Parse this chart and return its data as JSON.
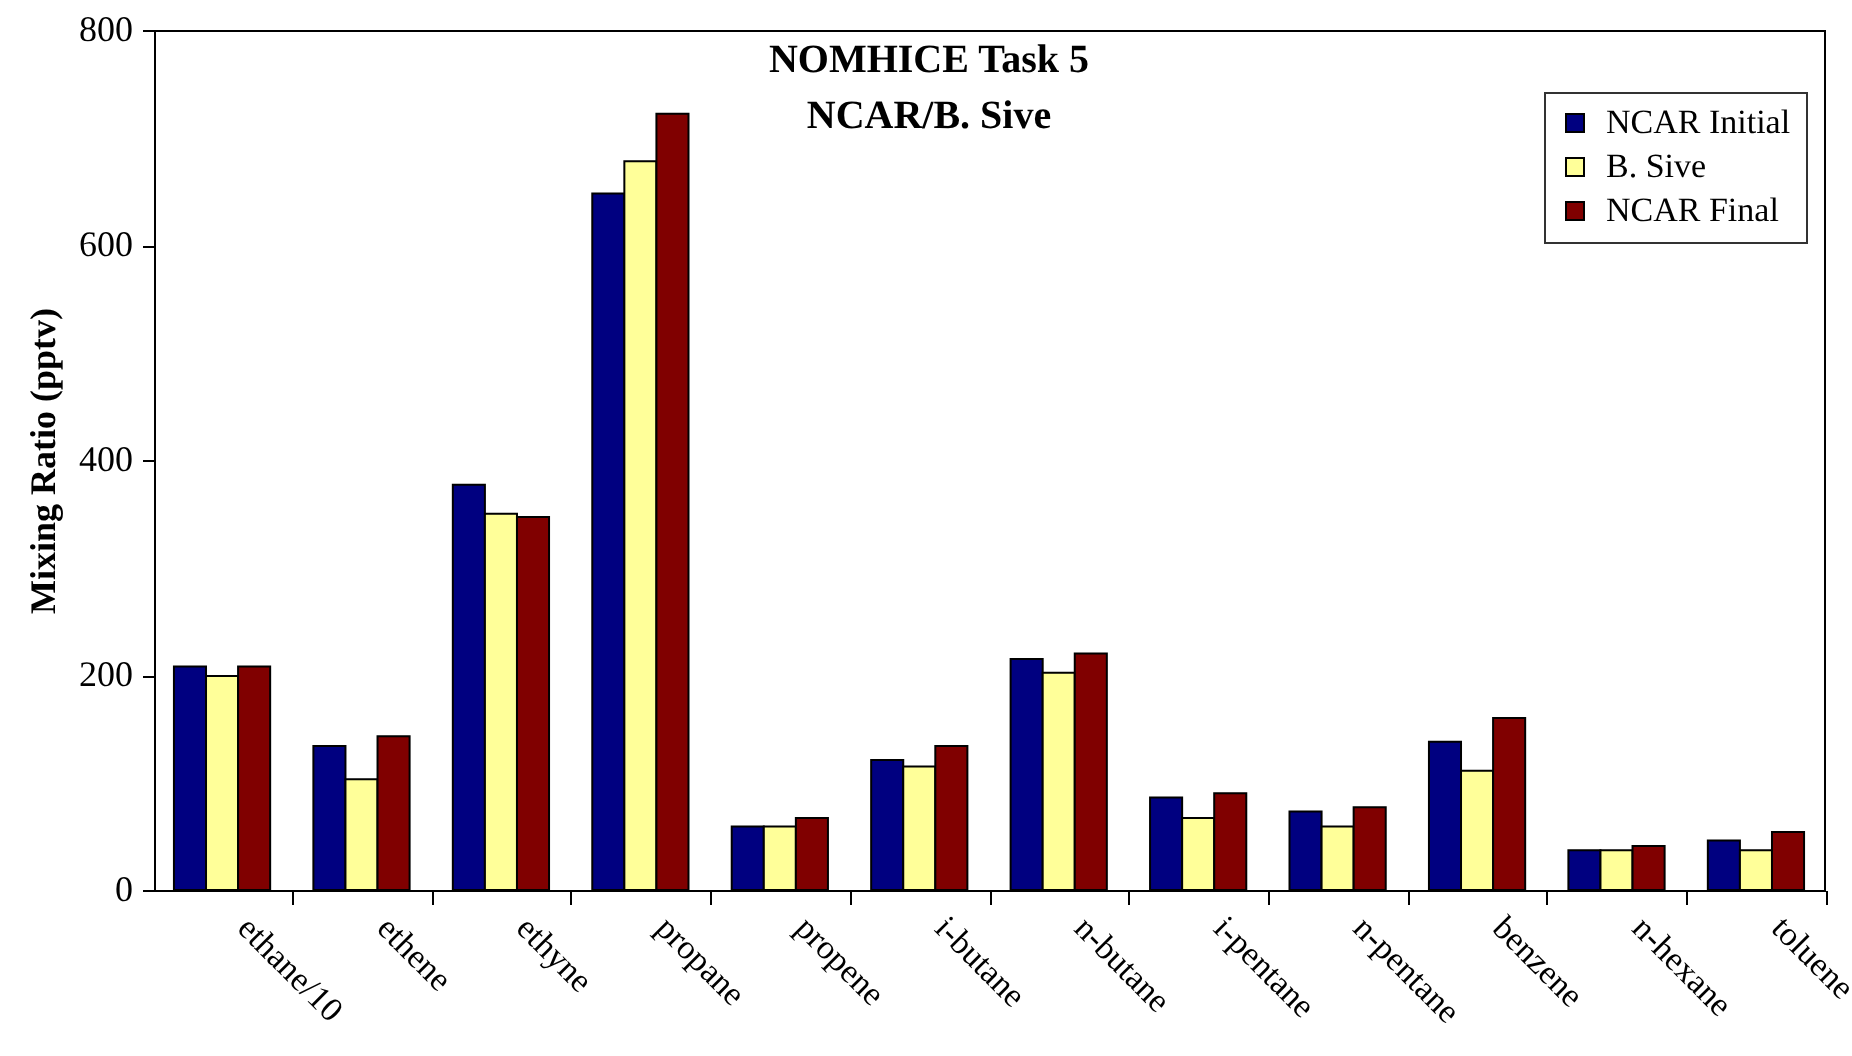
{
  "chart_data": {
    "type": "bar",
    "title": "NOMHICE Task 5",
    "subtitle": "NCAR/B. Sive",
    "ylabel": "Mixing Ratio (pptv)",
    "categories": [
      "ethane/10",
      "ethene",
      "ethyne",
      "propane",
      "propene",
      "i-butane",
      "n-butane",
      "i-pentane",
      "n-pentane",
      "benzene",
      "n-hexane",
      "toluene"
    ],
    "series": [
      {
        "name": "NCAR Initial",
        "color": "#000080",
        "values": [
          208,
          134,
          377,
          648,
          59,
          121,
          215,
          86,
          73,
          138,
          37,
          46
        ]
      },
      {
        "name": "B. Sive",
        "color": "#ffff99",
        "values": [
          199,
          103,
          350,
          678,
          59,
          115,
          202,
          67,
          59,
          111,
          37,
          37
        ]
      },
      {
        "name": "NCAR Final",
        "color": "#800000",
        "values": [
          208,
          143,
          347,
          722,
          67,
          134,
          220,
          90,
          77,
          160,
          41,
          54
        ]
      }
    ],
    "ylim": [
      0,
      800
    ],
    "yticks": [
      0,
      200,
      400,
      600,
      800
    ],
    "legend": "top right"
  }
}
